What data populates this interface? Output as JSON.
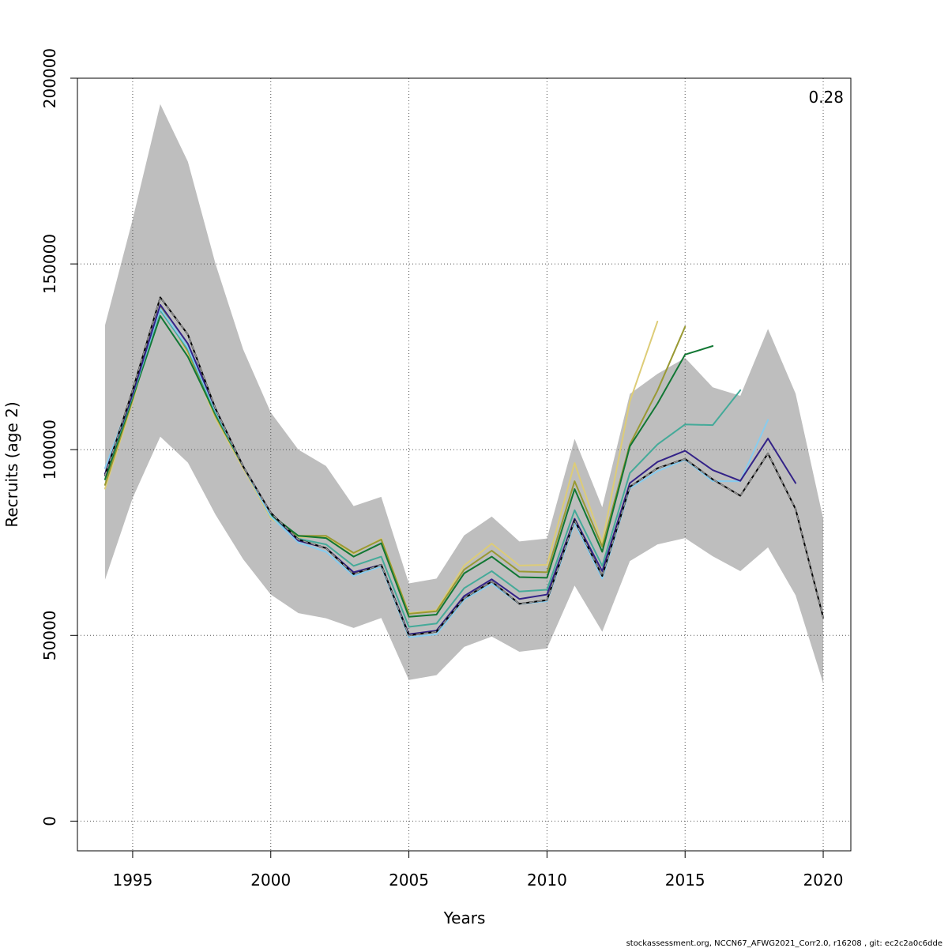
{
  "chart_data": {
    "type": "line",
    "title": "",
    "xlabel": "Years",
    "ylabel": "Recruits (age 2)",
    "xlim": [
      1993,
      2021
    ],
    "ylim": [
      -8000,
      200000
    ],
    "x_ticks": [
      1995,
      2000,
      2005,
      2010,
      2015,
      2020
    ],
    "x_tick_labels": [
      "1995",
      "2000",
      "2005",
      "2010",
      "2015",
      "2020"
    ],
    "y_ticks": [
      0,
      50000,
      100000,
      150000,
      200000
    ],
    "y_tick_labels": [
      "0",
      "50000",
      "100000",
      "150000",
      "200000"
    ],
    "grid": true,
    "annotation": "0.28",
    "confidence_band": {
      "color": "#bebebe",
      "x": [
        1994,
        1995,
        1996,
        1997,
        1998,
        1999,
        2000,
        2001,
        2002,
        2003,
        2004,
        2005,
        2006,
        2007,
        2008,
        2009,
        2010,
        2011,
        2012,
        2013,
        2014,
        2015,
        2016,
        2017,
        2018,
        2019,
        2020
      ],
      "upper": [
        133500,
        162000,
        193000,
        177500,
        150000,
        127000,
        110000,
        100000,
        95600,
        84800,
        87300,
        64000,
        65300,
        76900,
        82000,
        75300,
        76100,
        102900,
        84500,
        115000,
        120400,
        124700,
        116800,
        114500,
        132500,
        115100,
        81400
      ],
      "lower": [
        65000,
        87000,
        103500,
        96500,
        82500,
        70500,
        61000,
        56000,
        54600,
        52000,
        54700,
        38000,
        39300,
        46900,
        49700,
        45600,
        46500,
        63400,
        51000,
        70000,
        74500,
        76200,
        71300,
        67300,
        73700,
        60800,
        37100
      ]
    },
    "x": [
      1994,
      1995,
      1996,
      1997,
      1998,
      1999,
      2000,
      2001,
      2002,
      2003,
      2004,
      2005,
      2006,
      2007,
      2008,
      2009,
      2010,
      2011,
      2012,
      2013,
      2014,
      2015,
      2016,
      2017,
      2018,
      2019,
      2020
    ],
    "series": [
      {
        "color": "#ddcc77",
        "width": 2,
        "dashed": false,
        "values": [
          89500,
          113000,
          139000,
          126000,
          108500,
          95000,
          81500,
          76500,
          76500,
          72000,
          76000,
          56000,
          56800,
          68800,
          74700,
          68800,
          69000,
          96400,
          74900,
          113000,
          134500,
          null,
          null,
          null,
          null,
          null,
          null
        ]
      },
      {
        "color": "#999933",
        "width": 2,
        "dashed": false,
        "values": [
          90500,
          113500,
          138500,
          126500,
          109000,
          95500,
          82000,
          76800,
          76800,
          72200,
          75800,
          55800,
          56500,
          67700,
          72800,
          67200,
          67000,
          91500,
          73900,
          101400,
          115900,
          133100,
          null,
          null,
          null,
          null,
          null
        ]
      },
      {
        "color": "#117733",
        "width": 2,
        "dashed": false,
        "values": [
          92000,
          114000,
          136000,
          125000,
          109500,
          95500,
          82500,
          76800,
          76200,
          71200,
          74800,
          55000,
          55600,
          66700,
          71200,
          65700,
          65500,
          89400,
          72500,
          100900,
          112400,
          125600,
          127900,
          null,
          null,
          null,
          null
        ]
      },
      {
        "color": "#44aa99",
        "width": 2,
        "dashed": false,
        "values": [
          93000,
          114500,
          137500,
          127000,
          110000,
          95500,
          82000,
          76000,
          74500,
          68700,
          71200,
          52300,
          53200,
          62700,
          67300,
          61800,
          62300,
          83700,
          68700,
          93700,
          101400,
          106800,
          106600,
          116000,
          null,
          null,
          null
        ]
      },
      {
        "color": "#88ccee",
        "width": 2,
        "dashed": false,
        "values": [
          95000,
          115000,
          138000,
          127500,
          110500,
          95500,
          82000,
          75000,
          72500,
          66000,
          68600,
          49500,
          50300,
          59600,
          63900,
          58500,
          59200,
          80200,
          65300,
          89600,
          94200,
          97300,
          91500,
          91500,
          108000,
          null,
          null
        ]
      },
      {
        "color": "#332288",
        "width": 2,
        "dashed": false,
        "values": [
          93500,
          115000,
          139000,
          128500,
          111000,
          95500,
          83000,
          75500,
          73500,
          67000,
          69000,
          50300,
          51300,
          60600,
          65100,
          59800,
          61000,
          81400,
          67300,
          91000,
          96700,
          99700,
          94500,
          91600,
          103000,
          91000,
          null
        ]
      },
      {
        "color": "#000000",
        "width": 2,
        "dashed": false,
        "values": [
          93000,
          116000,
          141000,
          131000,
          111000,
          95500,
          83000,
          75800,
          73500,
          66500,
          69000,
          50000,
          51000,
          60000,
          64500,
          58500,
          59500,
          81000,
          66000,
          90000,
          95000,
          97500,
          92000,
          87600,
          99000,
          84000,
          54800
        ]
      },
      {
        "color": "#999999",
        "width": 1.4,
        "dashed": true,
        "values": [
          93000,
          116000,
          141000,
          131000,
          111000,
          95500,
          83000,
          75800,
          73500,
          66500,
          69000,
          50000,
          51000,
          60000,
          64500,
          58500,
          59500,
          81000,
          66000,
          90000,
          95000,
          97500,
          92000,
          87600,
          99000,
          84000,
          54800
        ]
      }
    ]
  },
  "footer": "stockassessment.org, NCCN67_AFWG2021_Corr2.0, r16208 , git: ec2c2a0c6dde"
}
